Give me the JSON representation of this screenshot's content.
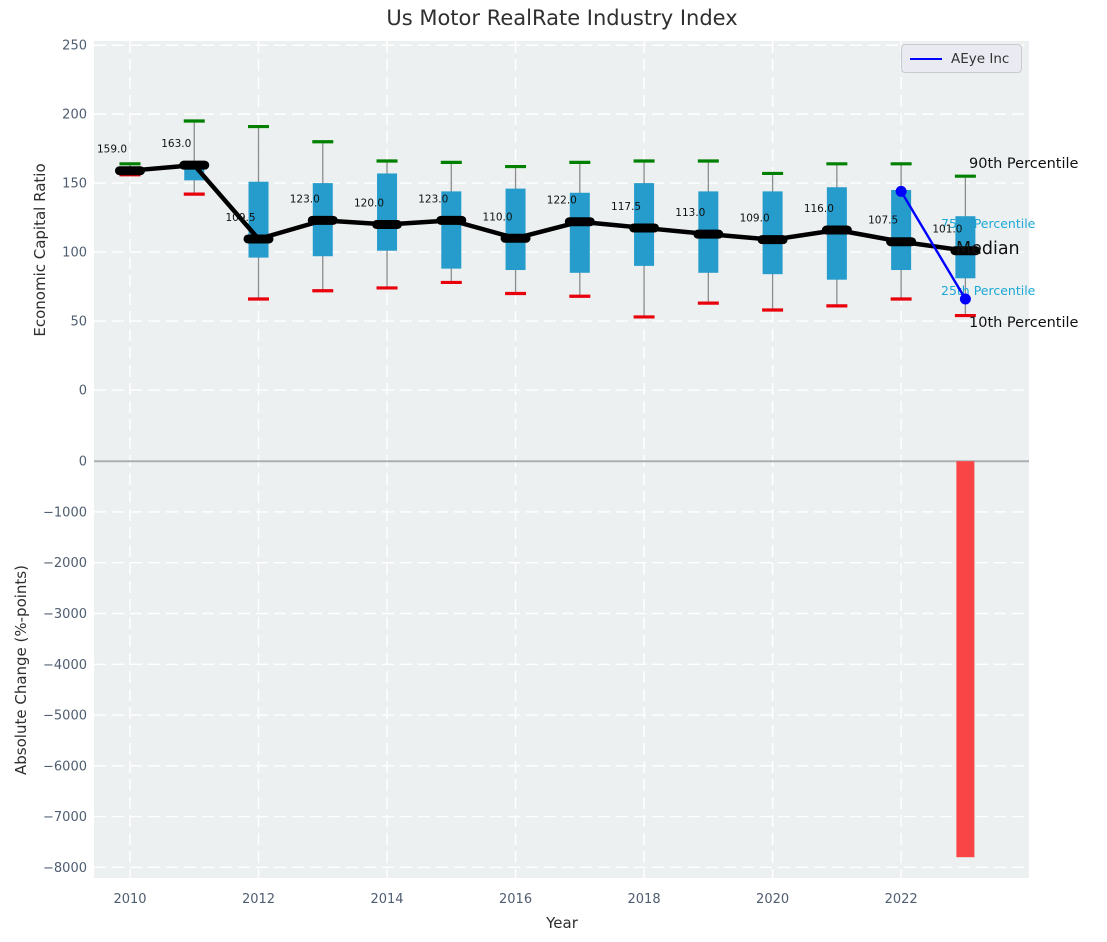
{
  "colors": {
    "panel_bg": "#ecf0f1",
    "grid": "#ffffff",
    "box_blue": "#259ccb",
    "p90_cap_green": "#008000",
    "p10_cap_red": "#e8000b",
    "median_black": "#000000",
    "aeye_blue": "#0000ff",
    "change_bar_red": "#f94546",
    "whisker_stem": "#8c8c8c",
    "tick_label": "#4f5d70",
    "zero_line": "#adb0b3",
    "percentile_cyan": "#1da8d6",
    "annotation_black": "#111111"
  },
  "chart_data": [
    {
      "type": "boxplot",
      "title": "Us Motor RealRate Industry Index",
      "ylabel": "Economic Capital Ratio",
      "legend": {
        "label": "AEye Inc"
      },
      "xlim": [
        2009.44,
        2023.99
      ],
      "ylim": [
        -42,
        253
      ],
      "yticks": {
        "values": [
          0,
          50,
          100,
          150,
          200,
          250
        ],
        "labels": [
          "0",
          "50",
          "100",
          "150",
          "200",
          "250"
        ]
      },
      "years": [
        2010,
        2011,
        2012,
        2013,
        2014,
        2015,
        2016,
        2017,
        2018,
        2019,
        2020,
        2021,
        2022,
        2023
      ],
      "p90": [
        164,
        195,
        191,
        180,
        166,
        165,
        162,
        165,
        166,
        166,
        157,
        164,
        164,
        155
      ],
      "q3": [
        161,
        166,
        151,
        150,
        157,
        144,
        146,
        143,
        150,
        144,
        144,
        147,
        145,
        126
      ],
      "median": [
        159.0,
        163.0,
        109.5,
        123.0,
        120.0,
        123.0,
        110.0,
        122.0,
        117.5,
        113.0,
        109.0,
        116.0,
        107.5,
        101.0
      ],
      "q1": [
        157,
        152,
        96,
        97,
        101,
        88,
        87,
        85,
        90,
        85,
        84,
        80,
        87,
        81
      ],
      "p10": [
        156,
        142,
        66,
        72,
        74,
        78,
        70,
        68,
        53,
        63,
        58,
        61,
        66,
        54
      ],
      "median_labels": [
        "159.0",
        "163.0",
        "109.5",
        "123.0",
        "120.0",
        "123.0",
        "110.0",
        "122.0",
        "117.5",
        "113.0",
        "109.0",
        "116.0",
        "107.5",
        "101.0"
      ],
      "aeye_line": {
        "name": "AEye Inc",
        "points": [
          {
            "x": 2022,
            "y": 144
          },
          {
            "x": 2023,
            "y": 66
          }
        ]
      },
      "annotations": [
        {
          "id": "p90-label",
          "text": "90th Percentile",
          "color": "#111111",
          "x": 969,
          "y": 168,
          "size": 14.5,
          "layer": "front"
        },
        {
          "id": "p75-label",
          "text": "75th Percentile",
          "color": "#1da8d6",
          "x": 941,
          "y": 228,
          "size": 12.5,
          "layer": "back"
        },
        {
          "id": "median-label",
          "text": "Median",
          "color": "#111111",
          "x": 956,
          "y": 254,
          "size": 17.5,
          "layer": "front"
        },
        {
          "id": "p25-label",
          "text": "25th Percentile",
          "color": "#1da8d6",
          "x": 941,
          "y": 295,
          "size": 12.5,
          "layer": "back"
        },
        {
          "id": "p10-label",
          "text": "10th Percentile",
          "color": "#111111",
          "x": 969,
          "y": 327,
          "size": 14.5,
          "layer": "front"
        }
      ]
    },
    {
      "type": "bar",
      "ylabel": "Absolute Change (%-points)",
      "xlabel": "Year",
      "xlim": [
        2009.44,
        2023.99
      ],
      "ylim": [
        -8210,
        260
      ],
      "yticks": {
        "values": [
          0,
          -1000,
          -2000,
          -3000,
          -4000,
          -5000,
          -6000,
          -7000,
          -8000
        ],
        "labels": [
          "0",
          "−1000",
          "−2000",
          "−3000",
          "−4000",
          "−5000",
          "−6000",
          "−7000",
          "−8000"
        ]
      },
      "xticks": {
        "values": [
          2010,
          2012,
          2014,
          2016,
          2018,
          2020,
          2022
        ],
        "labels": [
          "2010",
          "2012",
          "2014",
          "2016",
          "2018",
          "2020",
          "2022"
        ]
      },
      "bars": [
        {
          "x": 2023,
          "value": -7800
        }
      ]
    }
  ]
}
